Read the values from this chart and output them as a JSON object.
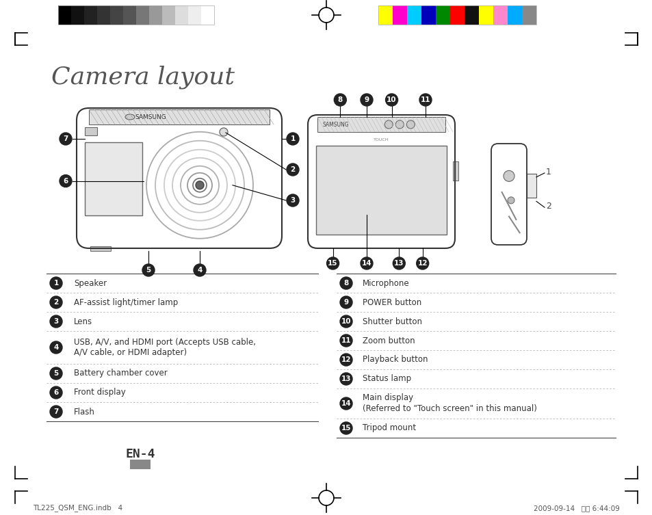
{
  "title": "Camera layout",
  "title_fontsize": 26,
  "title_color": "#555555",
  "bg_color": "#ffffff",
  "left_items": [
    {
      "num": "1",
      "text": "Speaker"
    },
    {
      "num": "2",
      "text": "AF-assist light/timer lamp"
    },
    {
      "num": "3",
      "text": "Lens"
    },
    {
      "num": "4",
      "text": "USB, A/V, and HDMI port (Accepts USB cable,\nA/V cable, or HDMI adapter)"
    },
    {
      "num": "5",
      "text": "Battery chamber cover"
    },
    {
      "num": "6",
      "text": "Front display"
    },
    {
      "num": "7",
      "text": "Flash"
    }
  ],
  "right_items": [
    {
      "num": "8",
      "text": "Microphone"
    },
    {
      "num": "9",
      "text": "POWER button"
    },
    {
      "num": "10",
      "text": "Shutter button"
    },
    {
      "num": "11",
      "text": "Zoom button"
    },
    {
      "num": "12",
      "text": "Playback button"
    },
    {
      "num": "13",
      "text": "Status lamp"
    },
    {
      "num": "14",
      "text": "Main display\n(Referred to \"Touch screen\" in this manual)"
    },
    {
      "num": "15",
      "text": "Tripod mount"
    }
  ],
  "footer_left": "TL225_QSM_ENG.indb   4",
  "footer_right": "2009-09-14   오후 6:44:09",
  "page_label": "EN-4",
  "gray_swatches": [
    "#000000",
    "#111111",
    "#222222",
    "#333333",
    "#444444",
    "#555555",
    "#777777",
    "#999999",
    "#bbbbbb",
    "#dddddd",
    "#eeeeee",
    "#ffffff"
  ],
  "color_swatches": [
    "#ffff00",
    "#ff00cc",
    "#00ccff",
    "#0000bb",
    "#008800",
    "#ff0000",
    "#111111",
    "#ffff00",
    "#ff88cc",
    "#00aaff",
    "#888888"
  ]
}
